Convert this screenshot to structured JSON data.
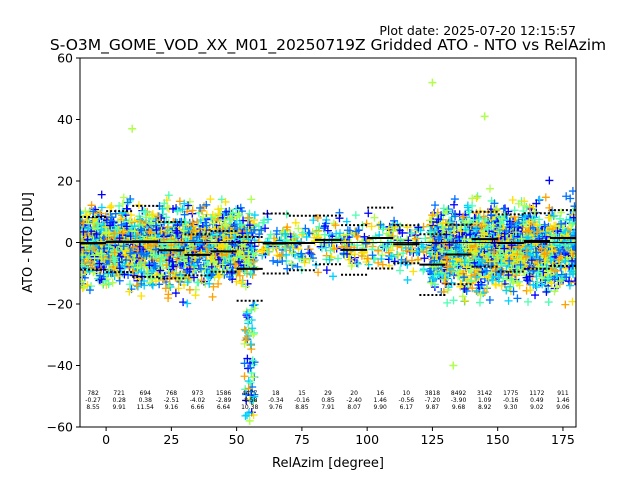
{
  "plot_date": "Plot date: 2025-07-20 12:15:57",
  "chart_data": {
    "type": "scatter",
    "title": "S-O3M_GOME_VOD_XX_M01_20250719Z Gridded ATO - NTO vs RelAzim",
    "xlabel": "RelAzim [degree]",
    "ylabel": "ATO - NTO [DU]",
    "xlim": [
      -10,
      180
    ],
    "ylim": [
      -60,
      60
    ],
    "xticks": [
      0,
      25,
      50,
      75,
      100,
      125,
      150,
      175
    ],
    "yticks": [
      -60,
      -40,
      -20,
      0,
      20,
      40,
      60
    ],
    "grid": false,
    "legend": "none",
    "marker": "plus",
    "colormap": "jet (colors vary per point)",
    "colors": [
      "#0000ff",
      "#0070ff",
      "#00d0ff",
      "#4dffb0",
      "#b0ff4d",
      "#ffe000",
      "#ffa000"
    ],
    "zero_line": 0,
    "bins": [
      {
        "x": -5,
        "count": "782",
        "mean": "-0.27",
        "std": "8.55"
      },
      {
        "x": 5,
        "count": "721",
        "mean": "0.28",
        "std": "9.91"
      },
      {
        "x": 15,
        "count": "694",
        "mean": "0.38",
        "std": "11.54"
      },
      {
        "x": 25,
        "count": "768",
        "mean": "-2.51",
        "std": "9.16"
      },
      {
        "x": 35,
        "count": "973",
        "mean": "-4.02",
        "std": "6.66"
      },
      {
        "x": 45,
        "count": "1586",
        "mean": "-2.89",
        "std": "6.64"
      },
      {
        "x": 55,
        "count": "4477",
        "mean": "-8.58",
        "std": "10.38"
      },
      {
        "x": 65,
        "count": "18",
        "mean": "-0.34",
        "std": "9.76"
      },
      {
        "x": 75,
        "count": "15",
        "mean": "-0.16",
        "std": "8.85"
      },
      {
        "x": 85,
        "count": "29",
        "mean": "0.85",
        "std": "7.91"
      },
      {
        "x": 95,
        "count": "20",
        "mean": "-2.40",
        "std": "8.07"
      },
      {
        "x": 105,
        "count": "16",
        "mean": "1.46",
        "std": "9.90"
      },
      {
        "x": 115,
        "count": "10",
        "mean": "-0.56",
        "std": "6.17"
      },
      {
        "x": 125,
        "count": "3818",
        "mean": "-7.20",
        "std": "9.87"
      },
      {
        "x": 135,
        "count": "8492",
        "mean": "-3.90",
        "std": "9.68"
      },
      {
        "x": 145,
        "count": "3142",
        "mean": "1.09",
        "std": "8.92"
      },
      {
        "x": 155,
        "count": "1775",
        "mean": "-0.16",
        "std": "9.30"
      },
      {
        "x": 165,
        "count": "1172",
        "mean": "0.49",
        "std": "9.02"
      },
      {
        "x": 175,
        "count": "911",
        "mean": "1.46",
        "std": "9.06"
      }
    ],
    "density": [
      {
        "x0": -10,
        "x1": 57,
        "center": -1,
        "spread": 10
      },
      {
        "x0": 58,
        "x1": 123,
        "center": 0,
        "spread": 7
      },
      {
        "x0": 124,
        "x1": 180,
        "center": -2,
        "spread": 11
      }
    ],
    "notable_points": [
      {
        "x": 125,
        "y": 52
      },
      {
        "x": 145,
        "y": 41
      },
      {
        "x": 10,
        "y": 37
      },
      {
        "x": 55,
        "y": -58
      },
      {
        "x": 133,
        "y": -40
      }
    ]
  }
}
